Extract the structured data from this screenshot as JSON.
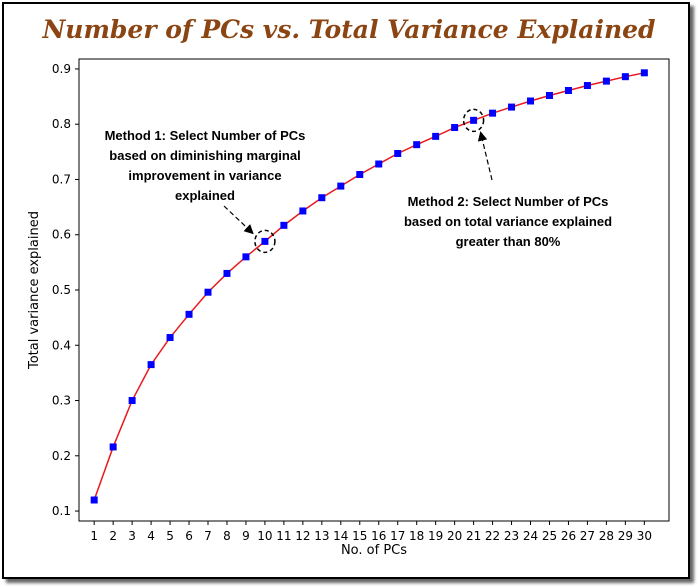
{
  "chart_data": {
    "type": "line",
    "title": "Number of PCs vs. Total Variance Explained",
    "xlabel": "No. of PCs",
    "ylabel": "Total variance explained",
    "x": [
      1,
      2,
      3,
      4,
      5,
      6,
      7,
      8,
      9,
      10,
      11,
      12,
      13,
      14,
      15,
      16,
      17,
      18,
      19,
      20,
      21,
      22,
      23,
      24,
      25,
      26,
      27,
      28,
      29,
      30
    ],
    "series": [
      {
        "values": [
          0.12,
          0.216,
          0.3,
          0.365,
          0.414,
          0.456,
          0.496,
          0.53,
          0.56,
          0.588,
          0.617,
          0.643,
          0.667,
          0.688,
          0.709,
          0.728,
          0.747,
          0.763,
          0.778,
          0.794,
          0.807,
          0.82,
          0.831,
          0.842,
          0.852,
          0.861,
          0.87,
          0.878,
          0.886,
          0.893
        ],
        "line_color": "#e8191c",
        "marker_color": "#0000ff"
      }
    ],
    "xlim": [
      0.2,
      31.3
    ],
    "ylim": [
      0.082,
      0.918
    ],
    "yticks": [
      0.1,
      0.2,
      0.3,
      0.4,
      0.5,
      0.6,
      0.7,
      0.8,
      0.9
    ],
    "xticks": [
      1,
      2,
      3,
      4,
      5,
      6,
      7,
      8,
      9,
      10,
      11,
      12,
      13,
      14,
      15,
      16,
      17,
      18,
      19,
      20,
      21,
      22,
      23,
      24,
      25,
      26,
      27,
      28,
      29,
      30
    ],
    "grid": false,
    "annotations": [
      {
        "lines": [
          "Method 1: Select Number of PCs",
          "based on diminishing marginal",
          "improvement in variance",
          "explained"
        ],
        "target_x": 10,
        "target_y": 0.588
      },
      {
        "lines": [
          "Method 2: Select Number of PCs",
          "based on total variance explained",
          "greater than 80%"
        ],
        "target_x": 21,
        "target_y": 0.807
      }
    ]
  }
}
